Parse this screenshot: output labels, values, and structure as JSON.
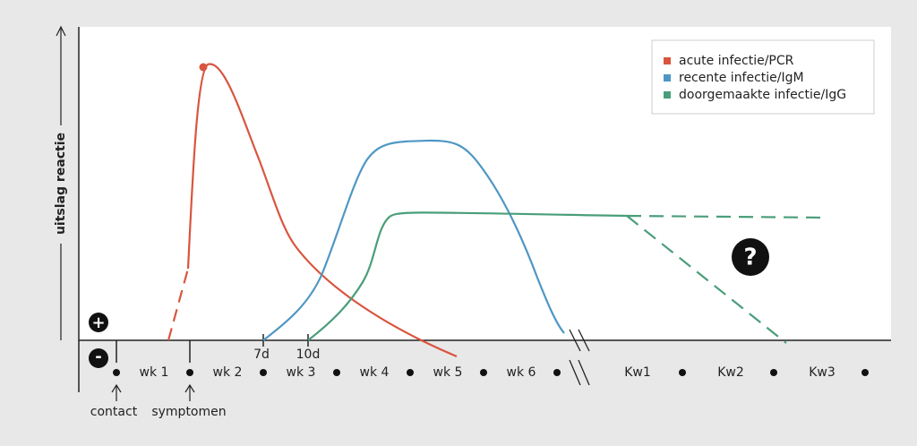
{
  "y_axis_label": "uitslag reactie",
  "legend": [
    {
      "label": "acute infectie/PCR",
      "color": "#d9553f"
    },
    {
      "label": "recente infectie/IgM",
      "color": "#4e97c4"
    },
    {
      "label": "doorgemaakte infectie/IgG",
      "color": "#4a9e7a"
    }
  ],
  "signs": {
    "plus": "+",
    "minus": "-"
  },
  "x_labels": [
    "wk 1",
    "wk 2",
    "wk 3",
    "wk 4",
    "wk 5",
    "wk 6",
    "Kw1",
    "Kw2",
    "Kw3"
  ],
  "markers": [
    "7d",
    "10d"
  ],
  "events": [
    "contact",
    "symptomen"
  ],
  "question": "?"
}
